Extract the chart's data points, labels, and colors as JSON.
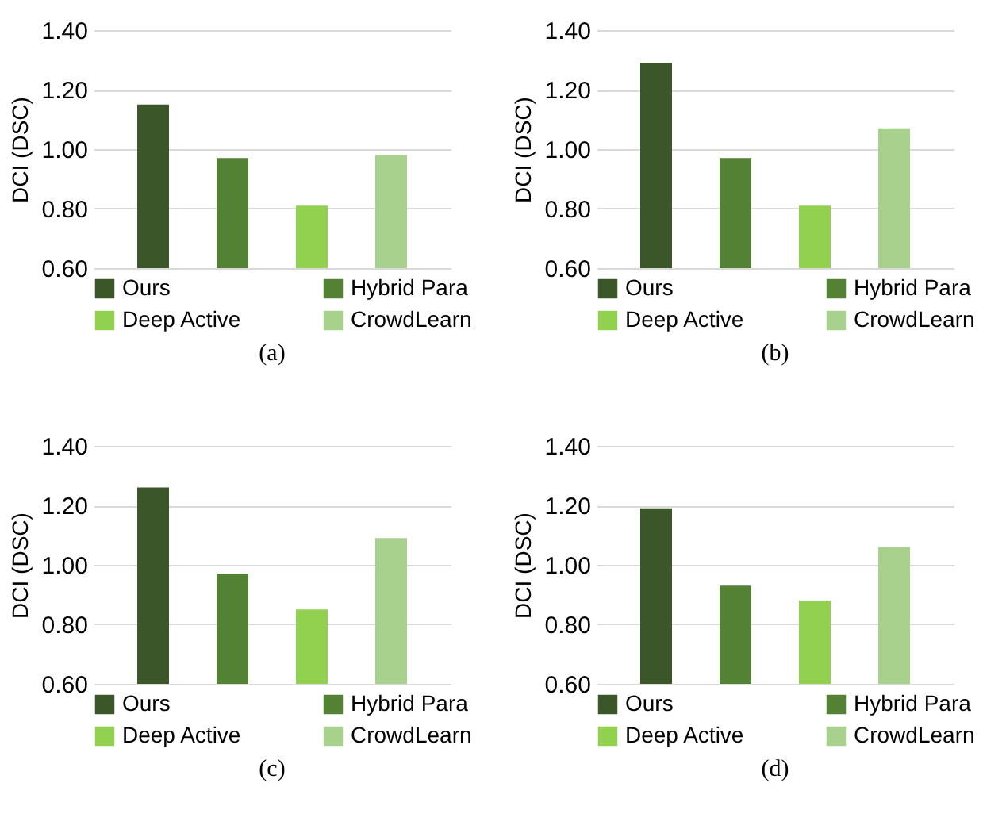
{
  "chart_data": [
    {
      "type": "bar",
      "title": "(a)",
      "ylabel": "DCI (DSC)",
      "categories": [
        null
      ],
      "ylim": [
        0.6,
        1.4
      ],
      "yticks": [
        {
          "value": 0.6,
          "label": "0.60"
        },
        {
          "value": 0.8,
          "label": "0.80"
        },
        {
          "value": 1.0,
          "label": "1.00"
        },
        {
          "value": 1.2,
          "label": "1.20"
        },
        {
          "value": 1.4,
          "label": "1.40"
        }
      ],
      "grid": "y",
      "legend": "bottom",
      "series": [
        {
          "name": "Ours",
          "color": "#3b5628",
          "values": [
            1.15
          ]
        },
        {
          "name": "Hybrid Para",
          "color": "#548235",
          "values": [
            0.97
          ]
        },
        {
          "name": "Deep Active",
          "color": "#92d050",
          "values": [
            0.81
          ]
        },
        {
          "name": "CrowdLearn",
          "color": "#a9d18e",
          "values": [
            0.98
          ]
        }
      ]
    },
    {
      "type": "bar",
      "title": "(b)",
      "ylabel": "DCI (DSC)",
      "categories": [
        null
      ],
      "ylim": [
        0.6,
        1.4
      ],
      "yticks": [
        {
          "value": 0.6,
          "label": "0.60"
        },
        {
          "value": 0.8,
          "label": "0.80"
        },
        {
          "value": 1.0,
          "label": "1.00"
        },
        {
          "value": 1.2,
          "label": "1.20"
        },
        {
          "value": 1.4,
          "label": "1.40"
        }
      ],
      "grid": "y",
      "legend": "bottom",
      "series": [
        {
          "name": "Ours",
          "color": "#3b5628",
          "values": [
            1.29
          ]
        },
        {
          "name": "Hybrid Para",
          "color": "#548235",
          "values": [
            0.97
          ]
        },
        {
          "name": "Deep Active",
          "color": "#92d050",
          "values": [
            0.81
          ]
        },
        {
          "name": "CrowdLearn",
          "color": "#a9d18e",
          "values": [
            1.07
          ]
        }
      ]
    },
    {
      "type": "bar",
      "title": "(c)",
      "ylabel": "DCI (DSC)",
      "categories": [
        null
      ],
      "ylim": [
        0.6,
        1.4
      ],
      "yticks": [
        {
          "value": 0.6,
          "label": "0.60"
        },
        {
          "value": 0.8,
          "label": "0.80"
        },
        {
          "value": 1.0,
          "label": "1.00"
        },
        {
          "value": 1.2,
          "label": "1.20"
        },
        {
          "value": 1.4,
          "label": "1.40"
        }
      ],
      "grid": "y",
      "legend": "bottom",
      "series": [
        {
          "name": "Ours",
          "color": "#3b5628",
          "values": [
            1.26
          ]
        },
        {
          "name": "Hybrid Para",
          "color": "#548235",
          "values": [
            0.97
          ]
        },
        {
          "name": "Deep Active",
          "color": "#92d050",
          "values": [
            0.85
          ]
        },
        {
          "name": "CrowdLearn",
          "color": "#a9d18e",
          "values": [
            1.09
          ]
        }
      ]
    },
    {
      "type": "bar",
      "title": "(d)",
      "ylabel": "DCI (DSC)",
      "categories": [
        null
      ],
      "ylim": [
        0.6,
        1.4
      ],
      "yticks": [
        {
          "value": 0.6,
          "label": "0.60"
        },
        {
          "value": 0.8,
          "label": "0.80"
        },
        {
          "value": 1.0,
          "label": "1.00"
        },
        {
          "value": 1.2,
          "label": "1.20"
        },
        {
          "value": 1.4,
          "label": "1.40"
        }
      ],
      "grid": "y",
      "legend": "bottom",
      "series": [
        {
          "name": "Ours",
          "color": "#3b5628",
          "values": [
            1.19
          ]
        },
        {
          "name": "Hybrid Para",
          "color": "#548235",
          "values": [
            0.93
          ]
        },
        {
          "name": "Deep Active",
          "color": "#92d050",
          "values": [
            0.88
          ]
        },
        {
          "name": "CrowdLearn",
          "color": "#a9d18e",
          "values": [
            1.06
          ]
        }
      ]
    }
  ]
}
